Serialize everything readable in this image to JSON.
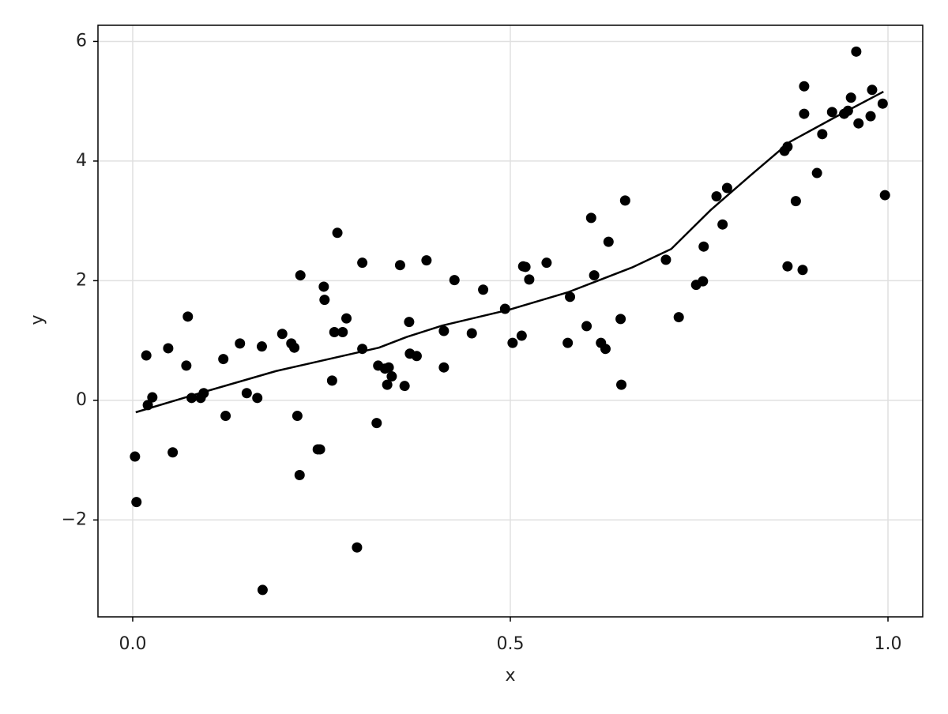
{
  "chart_data": {
    "type": "scatter",
    "xlabel": "x",
    "ylabel": "y",
    "xlim": [
      -0.046,
      1.046
    ],
    "ylim": [
      -3.62,
      6.27
    ],
    "xticks": [
      {
        "value": 0,
        "label": "0.0"
      },
      0.5,
      {
        "value": 1,
        "label": "1.0"
      }
    ],
    "yticks": [
      {
        "value": -2,
        "label": "−2"
      },
      0,
      2,
      4,
      6
    ],
    "grid": true,
    "series": [
      {
        "type": "scatter",
        "color": "#000000",
        "x": [
          0.003,
          0.005,
          0.018,
          0.02,
          0.026,
          0.047,
          0.053,
          0.071,
          0.073,
          0.078,
          0.09,
          0.094,
          0.12,
          0.123,
          0.142,
          0.151,
          0.165,
          0.171,
          0.172,
          0.198,
          0.21,
          0.214,
          0.218,
          0.221,
          0.222,
          0.245,
          0.248,
          0.253,
          0.254,
          0.264,
          0.267,
          0.271,
          0.278,
          0.283,
          0.297,
          0.304,
          0.304,
          0.323,
          0.325,
          0.334,
          0.337,
          0.339,
          0.343,
          0.354,
          0.36,
          0.366,
          0.367,
          0.376,
          0.389,
          0.412,
          0.412,
          0.426,
          0.449,
          0.464,
          0.493,
          0.503,
          0.515,
          0.517,
          0.52,
          0.525,
          0.548,
          0.576,
          0.579,
          0.601,
          0.607,
          0.611,
          0.62,
          0.626,
          0.63,
          0.646,
          0.647,
          0.652,
          0.706,
          0.723,
          0.746,
          0.755,
          0.756,
          0.773,
          0.781,
          0.787,
          0.863,
          0.867,
          0.867,
          0.878,
          0.887,
          0.889,
          0.889,
          0.906,
          0.913,
          0.926,
          0.942,
          0.947,
          0.951,
          0.958,
          0.961,
          0.977,
          0.979,
          0.993,
          0.996
        ],
        "values": [
          -0.94,
          -1.7,
          0.75,
          -0.08,
          0.05,
          0.87,
          -0.87,
          0.58,
          1.4,
          0.04,
          0.04,
          0.12,
          0.69,
          -0.26,
          0.95,
          0.12,
          0.04,
          0.9,
          -3.17,
          1.11,
          0.95,
          0.88,
          -0.26,
          -1.25,
          2.09,
          -0.82,
          -0.82,
          1.9,
          1.68,
          0.33,
          1.14,
          2.8,
          1.14,
          1.37,
          -2.46,
          2.3,
          0.86,
          -0.38,
          0.58,
          0.53,
          0.26,
          0.55,
          0.4,
          2.26,
          0.24,
          1.31,
          0.78,
          0.74,
          2.34,
          1.16,
          0.55,
          2.01,
          1.12,
          1.85,
          1.53,
          0.96,
          1.08,
          2.24,
          2.23,
          2.02,
          2.3,
          0.96,
          1.73,
          1.24,
          3.05,
          2.09,
          0.96,
          0.86,
          2.65,
          1.36,
          0.26,
          3.34,
          2.35,
          1.39,
          1.93,
          1.99,
          2.57,
          3.41,
          2.94,
          3.55,
          4.17,
          4.24,
          2.24,
          3.33,
          2.18,
          5.25,
          4.79,
          3.8,
          4.45,
          4.82,
          4.79,
          4.84,
          5.06,
          5.83,
          4.63,
          4.75,
          5.19,
          4.96,
          3.43
        ]
      },
      {
        "type": "line",
        "color": "#000000",
        "x": [
          0.004,
          0.086,
          0.19,
          0.326,
          0.363,
          0.41,
          0.5,
          0.577,
          0.661,
          0.713,
          0.766,
          0.818,
          0.87,
          0.931,
          0.994
        ],
        "values": [
          -0.2,
          0.11,
          0.49,
          0.88,
          1.06,
          1.25,
          1.52,
          1.81,
          2.22,
          2.53,
          3.19,
          3.76,
          4.32,
          4.74,
          5.16
        ]
      }
    ]
  }
}
